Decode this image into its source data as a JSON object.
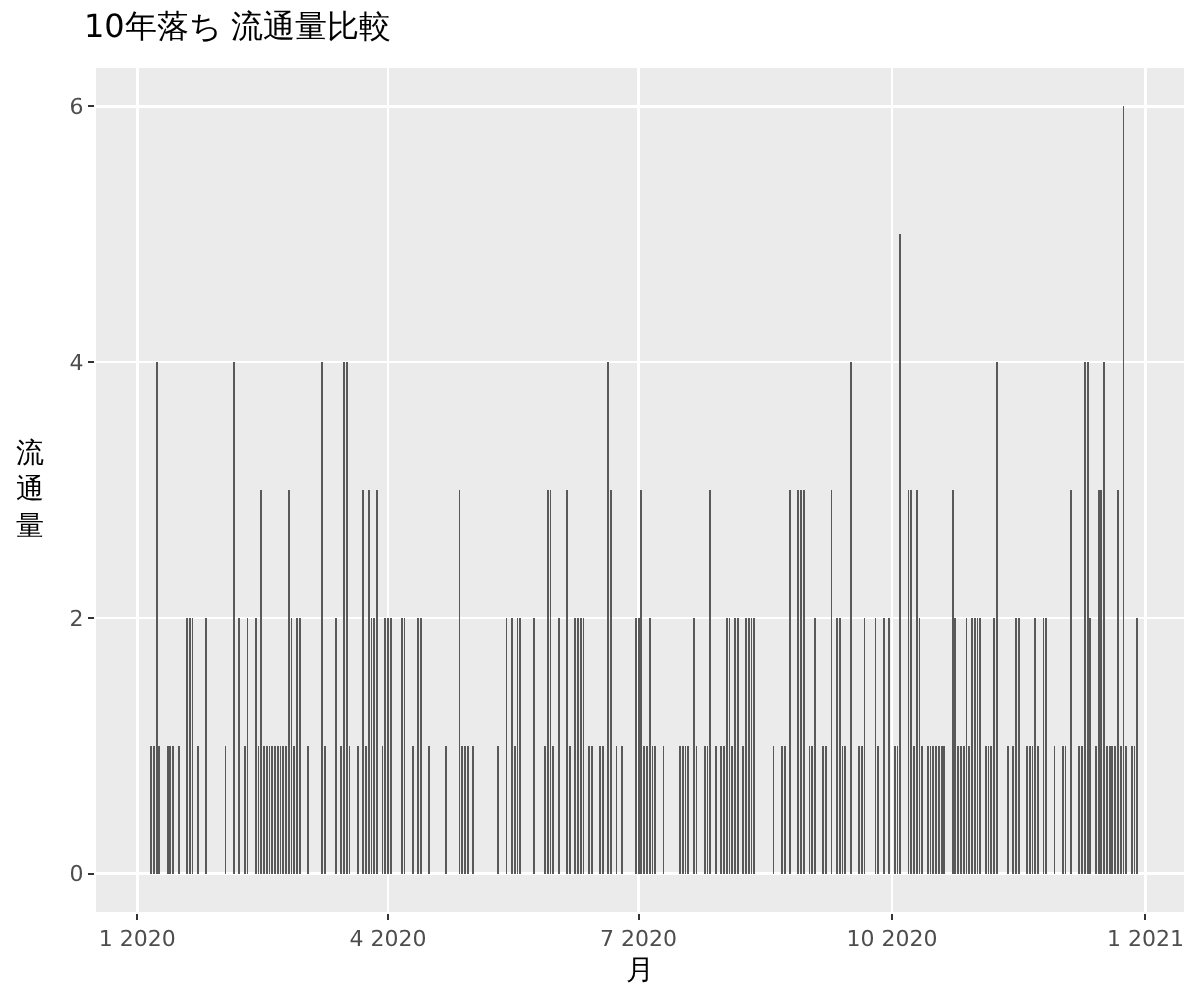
{
  "chart_data": {
    "type": "bar",
    "title": "10年落ち 流通量比較",
    "xlabel": "月",
    "ylabel": "流通量",
    "color": "#595959",
    "grid": true,
    "x": [
      "2020-01-06",
      "2020-01-07",
      "2020-01-08",
      "2020-01-09",
      "2020-01-12",
      "2020-01-13",
      "2020-01-14",
      "2020-01-16",
      "2020-01-19",
      "2020-01-20",
      "2020-01-21",
      "2020-01-23",
      "2020-01-26",
      "2020-02-02",
      "2020-02-05",
      "2020-02-07",
      "2020-02-09",
      "2020-02-10",
      "2020-02-13",
      "2020-02-14",
      "2020-02-15",
      "2020-02-16",
      "2020-02-17",
      "2020-02-18",
      "2020-02-19",
      "2020-02-20",
      "2020-02-21",
      "2020-02-22",
      "2020-02-23",
      "2020-02-24",
      "2020-02-25",
      "2020-02-26",
      "2020-02-27",
      "2020-02-28",
      "2020-02-29",
      "2020-03-03",
      "2020-03-08",
      "2020-03-09",
      "2020-03-13",
      "2020-03-15",
      "2020-03-16",
      "2020-03-17",
      "2020-03-18",
      "2020-03-21",
      "2020-03-23",
      "2020-03-24",
      "2020-03-25",
      "2020-03-26",
      "2020-03-27",
      "2020-03-28",
      "2020-03-30",
      "2020-03-31",
      "2020-04-01",
      "2020-04-02",
      "2020-04-06",
      "2020-04-07",
      "2020-04-10",
      "2020-04-12",
      "2020-04-13",
      "2020-04-16",
      "2020-04-22",
      "2020-04-27",
      "2020-04-28",
      "2020-04-29",
      "2020-04-30",
      "2020-05-02",
      "2020-05-11",
      "2020-05-14",
      "2020-05-16",
      "2020-05-17",
      "2020-05-18",
      "2020-05-19",
      "2020-05-24",
      "2020-05-28",
      "2020-05-29",
      "2020-05-30",
      "2020-05-31",
      "2020-06-02",
      "2020-06-05",
      "2020-06-06",
      "2020-06-08",
      "2020-06-09",
      "2020-06-10",
      "2020-06-11",
      "2020-06-13",
      "2020-06-14",
      "2020-06-17",
      "2020-06-18",
      "2020-06-20",
      "2020-06-21",
      "2020-06-23",
      "2020-06-25",
      "2020-06-30",
      "2020-07-01",
      "2020-07-02",
      "2020-07-03",
      "2020-07-04",
      "2020-07-05",
      "2020-07-06",
      "2020-07-07",
      "2020-07-10",
      "2020-07-16",
      "2020-07-17",
      "2020-07-18",
      "2020-07-19",
      "2020-07-21",
      "2020-07-22",
      "2020-07-25",
      "2020-07-26",
      "2020-07-27",
      "2020-07-29",
      "2020-07-31",
      "2020-08-01",
      "2020-08-02",
      "2020-08-03",
      "2020-08-04",
      "2020-08-05",
      "2020-08-06",
      "2020-08-08",
      "2020-08-09",
      "2020-08-10",
      "2020-08-11",
      "2020-08-12",
      "2020-08-19",
      "2020-08-22",
      "2020-08-23",
      "2020-08-25",
      "2020-08-28",
      "2020-08-29",
      "2020-08-30",
      "2020-09-01",
      "2020-09-02",
      "2020-09-03",
      "2020-09-06",
      "2020-09-07",
      "2020-09-09",
      "2020-09-11",
      "2020-09-12",
      "2020-09-13",
      "2020-09-14",
      "2020-09-16",
      "2020-09-19",
      "2020-09-20",
      "2020-09-21",
      "2020-09-25",
      "2020-09-26",
      "2020-09-28",
      "2020-09-30",
      "2020-10-02",
      "2020-10-03",
      "2020-10-04",
      "2020-10-07",
      "2020-10-08",
      "2020-10-09",
      "2020-10-10",
      "2020-10-11",
      "2020-10-12",
      "2020-10-14",
      "2020-10-15",
      "2020-10-16",
      "2020-10-17",
      "2020-10-18",
      "2020-10-19",
      "2020-10-20",
      "2020-10-23",
      "2020-10-24",
      "2020-10-25",
      "2020-10-26",
      "2020-10-27",
      "2020-10-28",
      "2020-10-29",
      "2020-10-30",
      "2020-10-31",
      "2020-11-01",
      "2020-11-02",
      "2020-11-04",
      "2020-11-05",
      "2020-11-06",
      "2020-11-07",
      "2020-11-08",
      "2020-11-12",
      "2020-11-14",
      "2020-11-15",
      "2020-11-16",
      "2020-11-19",
      "2020-11-20",
      "2020-11-21",
      "2020-11-22",
      "2020-11-23",
      "2020-11-25",
      "2020-11-26",
      "2020-11-29",
      "2020-12-02",
      "2020-12-03",
      "2020-12-05",
      "2020-12-08",
      "2020-12-09",
      "2020-12-10",
      "2020-12-11",
      "2020-12-12",
      "2020-12-14",
      "2020-12-15",
      "2020-12-16",
      "2020-12-17",
      "2020-12-18",
      "2020-12-19",
      "2020-12-20",
      "2020-12-21",
      "2020-12-22",
      "2020-12-23",
      "2020-12-24",
      "2020-12-25",
      "2020-12-27",
      "2020-12-28",
      "2020-12-29"
    ],
    "values": [
      1,
      1,
      4,
      1,
      1,
      1,
      1,
      1,
      2,
      2,
      2,
      1,
      2,
      1,
      4,
      2,
      1,
      2,
      2,
      1,
      3,
      1,
      1,
      1,
      1,
      1,
      1,
      1,
      1,
      1,
      3,
      2,
      1,
      2,
      2,
      1,
      4,
      1,
      2,
      1,
      4,
      4,
      1,
      1,
      3,
      1,
      3,
      2,
      2,
      3,
      1,
      2,
      2,
      2,
      2,
      2,
      1,
      2,
      2,
      1,
      1,
      3,
      1,
      1,
      1,
      1,
      1,
      2,
      2,
      1,
      2,
      2,
      2,
      1,
      3,
      3,
      1,
      2,
      3,
      1,
      2,
      2,
      2,
      2,
      1,
      1,
      1,
      1,
      4,
      3,
      1,
      1,
      2,
      2,
      3,
      1,
      1,
      2,
      1,
      1,
      1,
      1,
      1,
      1,
      1,
      2,
      1,
      1,
      1,
      3,
      1,
      1,
      1,
      2,
      2,
      1,
      2,
      2,
      1,
      2,
      2,
      2,
      2,
      1,
      1,
      1,
      3,
      3,
      3,
      3,
      1,
      1,
      2,
      1,
      1,
      3,
      2,
      2,
      1,
      1,
      4,
      1,
      1,
      2,
      2,
      1,
      2,
      2,
      1,
      1,
      5,
      3,
      3,
      1,
      3,
      2,
      1,
      1,
      1,
      1,
      1,
      1,
      1,
      1,
      3,
      2,
      1,
      1,
      1,
      2,
      1,
      2,
      2,
      2,
      2,
      1,
      1,
      1,
      2,
      4,
      1,
      1,
      2,
      2,
      1,
      1,
      1,
      2,
      1,
      2,
      2,
      1,
      1,
      1,
      3,
      1,
      1,
      4,
      4,
      2,
      1,
      3,
      3,
      4,
      1,
      1,
      1,
      1,
      3,
      1,
      6,
      1,
      1,
      1,
      2
    ],
    "xlim": [
      "2019-12-17",
      "2021-01-15"
    ],
    "xticks": [
      {
        "value": "2020-01-01",
        "label": "1 2020"
      },
      {
        "value": "2020-04-01",
        "label": "4 2020"
      },
      {
        "value": "2020-07-01",
        "label": "7 2020"
      },
      {
        "value": "2020-10-01",
        "label": "10 2020"
      },
      {
        "value": "2021-01-01",
        "label": "1 2021"
      }
    ],
    "ylim": [
      -0.3,
      6.3
    ],
    "yticks": [
      0,
      2,
      4,
      6
    ]
  }
}
